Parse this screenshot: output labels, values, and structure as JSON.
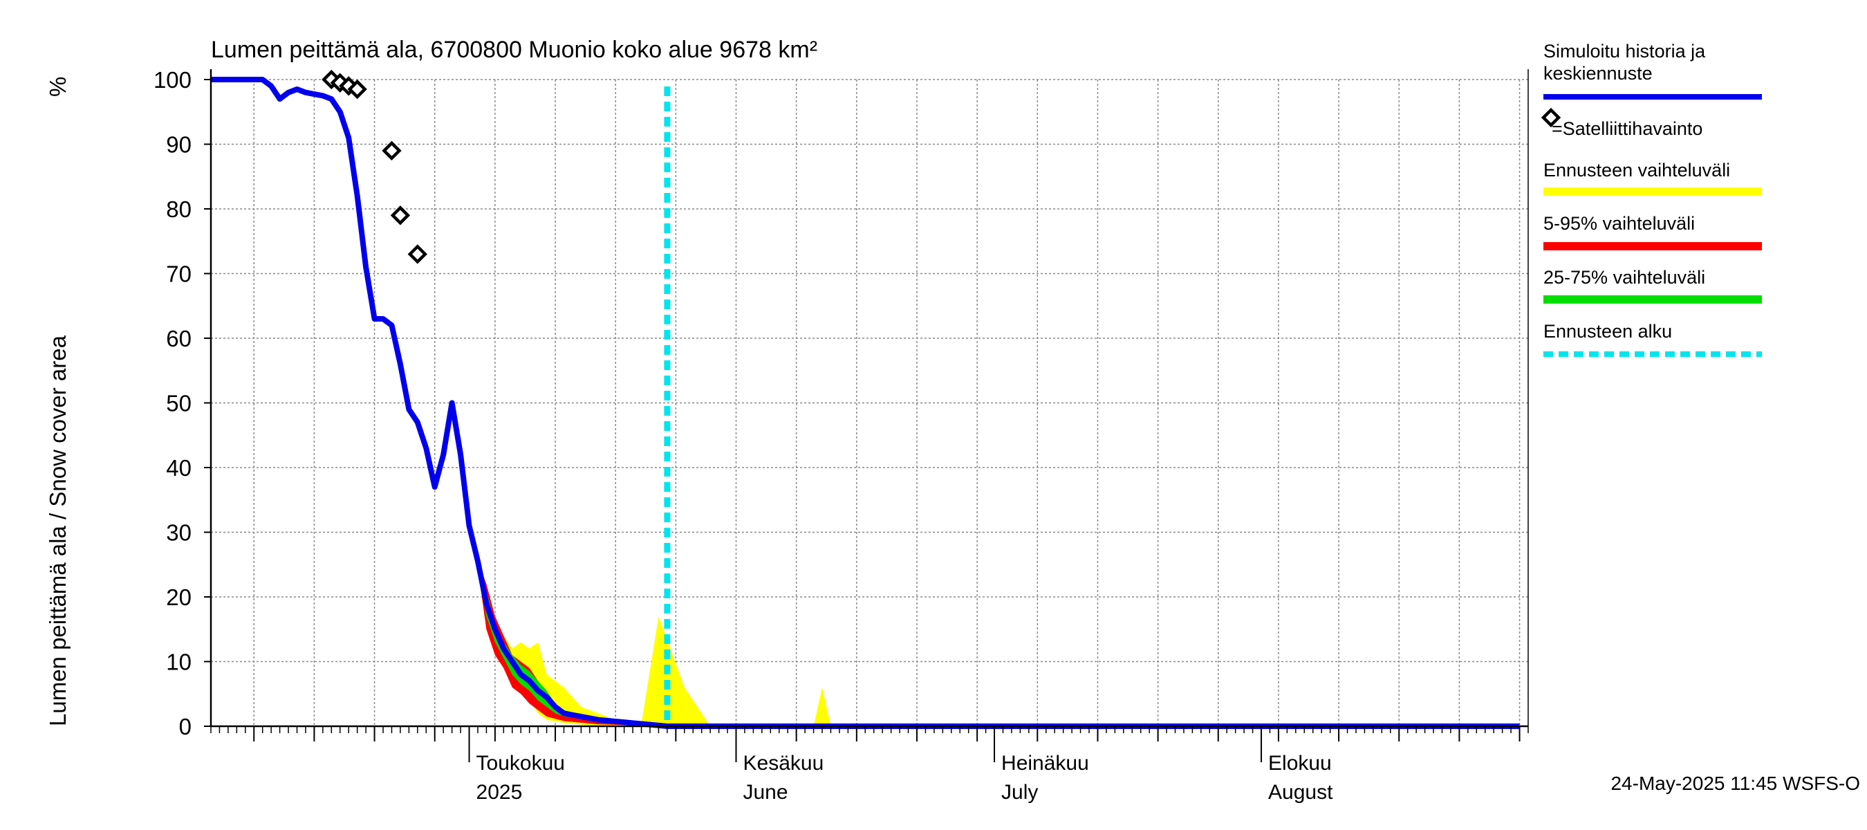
{
  "chart_data": {
    "type": "area",
    "title": "Lumen peittämä ala, 6700800 Muonio koko alue 9678 km²",
    "ylabel": "Lumen peittämä ala / Snow cover area",
    "yunit": "%",
    "ylim": [
      0,
      100
    ],
    "yticks": [
      0,
      10,
      20,
      30,
      40,
      50,
      60,
      70,
      80,
      90,
      100
    ],
    "xlim": [
      "2025-04-01",
      "2025-08-31"
    ],
    "grid": true,
    "forecast_start": "2025-05-24",
    "month_labels": [
      {
        "date": "2025-05-01",
        "fi": "Toukokuu",
        "en": "2025"
      },
      {
        "date": "2025-06-01",
        "fi": "Kesäkuu",
        "en": "June"
      },
      {
        "date": "2025-07-01",
        "fi": "Heinäkuu",
        "en": "July"
      },
      {
        "date": "2025-08-01",
        "fi": "Elokuu",
        "en": "August"
      }
    ],
    "series": [
      {
        "name": "Simuloitu historia ja keskiennuste",
        "color": "#0000ee",
        "points": [
          [
            "2025-04-01",
            100
          ],
          [
            "2025-04-07",
            100
          ],
          [
            "2025-04-08",
            99
          ],
          [
            "2025-04-09",
            97
          ],
          [
            "2025-04-10",
            98
          ],
          [
            "2025-04-11",
            98.5
          ],
          [
            "2025-04-12",
            98
          ],
          [
            "2025-04-14",
            97.5
          ],
          [
            "2025-04-15",
            97
          ],
          [
            "2025-04-16",
            95
          ],
          [
            "2025-04-17",
            91
          ],
          [
            "2025-04-18",
            82
          ],
          [
            "2025-04-19",
            71
          ],
          [
            "2025-04-20",
            63
          ],
          [
            "2025-04-21",
            63
          ],
          [
            "2025-04-22",
            62
          ],
          [
            "2025-04-23",
            56
          ],
          [
            "2025-04-24",
            49
          ],
          [
            "2025-04-25",
            47
          ],
          [
            "2025-04-26",
            43
          ],
          [
            "2025-04-27",
            37
          ],
          [
            "2025-04-28",
            42
          ],
          [
            "2025-04-29",
            50
          ],
          [
            "2025-04-30",
            42
          ],
          [
            "2025-05-01",
            31
          ],
          [
            "2025-05-02",
            25.5
          ],
          [
            "2025-05-03",
            19
          ],
          [
            "2025-05-04",
            15
          ],
          [
            "2025-05-05",
            12
          ],
          [
            "2025-05-06",
            10
          ],
          [
            "2025-05-07",
            8
          ],
          [
            "2025-05-08",
            7
          ],
          [
            "2025-05-09",
            5.5
          ],
          [
            "2025-05-10",
            4.5
          ],
          [
            "2025-05-11",
            3
          ],
          [
            "2025-05-12",
            2
          ],
          [
            "2025-05-14",
            1.5
          ],
          [
            "2025-05-16",
            1
          ],
          [
            "2025-05-20",
            0.5
          ],
          [
            "2025-05-24",
            0
          ],
          [
            "2025-08-31",
            0
          ]
        ]
      },
      {
        "name": "Satelliittihavainto",
        "marker": "diamond",
        "points": [
          [
            "2025-04-15",
            100
          ],
          [
            "2025-04-16",
            99.5
          ],
          [
            "2025-04-17",
            99
          ],
          [
            "2025-04-18",
            98.5
          ],
          [
            "2025-04-22",
            89
          ],
          [
            "2025-04-23",
            79
          ],
          [
            "2025-04-25",
            73
          ]
        ]
      }
    ],
    "bands": [
      {
        "name": "Ennusteen vaihteluväli",
        "color": "#ffff00",
        "upper": [
          [
            "2025-05-02",
            26
          ],
          [
            "2025-05-03",
            22
          ],
          [
            "2025-05-04",
            17
          ],
          [
            "2025-05-05",
            14
          ],
          [
            "2025-05-06",
            12
          ],
          [
            "2025-05-07",
            13
          ],
          [
            "2025-05-08",
            12
          ],
          [
            "2025-05-09",
            13
          ],
          [
            "2025-05-10",
            8
          ],
          [
            "2025-05-12",
            6
          ],
          [
            "2025-05-14",
            3
          ],
          [
            "2025-05-16",
            2
          ],
          [
            "2025-05-18",
            1
          ],
          [
            "2025-05-21",
            0.3
          ],
          [
            "2025-05-23",
            17
          ],
          [
            "2025-05-26",
            6
          ],
          [
            "2025-05-28",
            2
          ],
          [
            "2025-05-29",
            0
          ],
          [
            "2025-06-10",
            0
          ],
          [
            "2025-06-11",
            6
          ],
          [
            "2025-06-12",
            0
          ],
          [
            "2025-08-31",
            0
          ]
        ],
        "lower": [
          [
            "2025-05-02",
            24
          ],
          [
            "2025-05-03",
            15
          ],
          [
            "2025-05-04",
            11
          ],
          [
            "2025-05-05",
            9
          ],
          [
            "2025-05-06",
            6
          ],
          [
            "2025-05-07",
            5
          ],
          [
            "2025-05-08",
            4
          ],
          [
            "2025-05-09",
            2
          ],
          [
            "2025-05-10",
            1
          ],
          [
            "2025-05-12",
            0.5
          ],
          [
            "2025-05-16",
            0
          ],
          [
            "2025-08-31",
            0
          ]
        ]
      },
      {
        "name": "5-95% vaihteluväli",
        "color": "#ff0000",
        "upper": [
          [
            "2025-05-02",
            25.5
          ],
          [
            "2025-05-03",
            22
          ],
          [
            "2025-05-04",
            17
          ],
          [
            "2025-05-05",
            14
          ],
          [
            "2025-05-06",
            11
          ],
          [
            "2025-05-07",
            10
          ],
          [
            "2025-05-08",
            9
          ],
          [
            "2025-05-09",
            7
          ],
          [
            "2025-05-10",
            5
          ],
          [
            "2025-05-11",
            3.5
          ],
          [
            "2025-05-12",
            2.5
          ],
          [
            "2025-05-14",
            1.5
          ],
          [
            "2025-05-16",
            1
          ],
          [
            "2025-05-20",
            0.3
          ],
          [
            "2025-05-24",
            0
          ]
        ],
        "lower": [
          [
            "2025-05-02",
            24.5
          ],
          [
            "2025-05-03",
            15
          ],
          [
            "2025-05-04",
            11
          ],
          [
            "2025-05-05",
            9
          ],
          [
            "2025-05-06",
            6
          ],
          [
            "2025-05-07",
            5
          ],
          [
            "2025-05-08",
            3.5
          ],
          [
            "2025-05-09",
            2.5
          ],
          [
            "2025-05-10",
            1.5
          ],
          [
            "2025-05-12",
            0.8
          ],
          [
            "2025-05-16",
            0.3
          ],
          [
            "2025-05-24",
            0
          ]
        ]
      },
      {
        "name": "25-75% vaihteluväli",
        "color": "#00dd00",
        "upper": [
          [
            "2025-05-02",
            25
          ],
          [
            "2025-05-03",
            21
          ],
          [
            "2025-05-04",
            16
          ],
          [
            "2025-05-05",
            13
          ],
          [
            "2025-05-06",
            11
          ],
          [
            "2025-05-07",
            9.5
          ],
          [
            "2025-05-08",
            8.5
          ],
          [
            "2025-05-09",
            7
          ],
          [
            "2025-05-10",
            5.5
          ],
          [
            "2025-05-11",
            3.5
          ],
          [
            "2025-05-12",
            2.5
          ],
          [
            "2025-05-14",
            1.8
          ],
          [
            "2025-05-16",
            1.2
          ],
          [
            "2025-05-20",
            0.6
          ],
          [
            "2025-05-24",
            0
          ]
        ],
        "lower": [
          [
            "2025-05-02",
            25
          ],
          [
            "2025-05-03",
            17
          ],
          [
            "2025-05-04",
            13
          ],
          [
            "2025-05-05",
            10.5
          ],
          [
            "2025-05-06",
            8
          ],
          [
            "2025-05-07",
            6.5
          ],
          [
            "2025-05-08",
            5.5
          ],
          [
            "2025-05-09",
            4
          ],
          [
            "2025-05-10",
            3
          ],
          [
            "2025-05-11",
            2
          ],
          [
            "2025-05-12",
            1.5
          ],
          [
            "2025-05-16",
            0.8
          ],
          [
            "2025-05-20",
            0.3
          ],
          [
            "2025-05-24",
            0
          ]
        ]
      }
    ],
    "legend": [
      {
        "label": "Simuloitu historia ja keskiennuste",
        "style": "line",
        "color": "#0000ee"
      },
      {
        "label": "=Satelliittihavainto",
        "style": "diamond",
        "color": "#000000"
      },
      {
        "label": "Ennusteen vaihteluväli",
        "style": "band",
        "color": "#ffff00"
      },
      {
        "label": "5-95% vaihteluväli",
        "style": "band",
        "color": "#ff0000"
      },
      {
        "label": "25-75% vaihteluväli",
        "style": "band",
        "color": "#00dd00"
      },
      {
        "label": "Ennusteen alku",
        "style": "dashed",
        "color": "#00e5ee"
      }
    ],
    "legend_position": "right",
    "footer": "24-May-2025 11:45 WSFS-O"
  }
}
